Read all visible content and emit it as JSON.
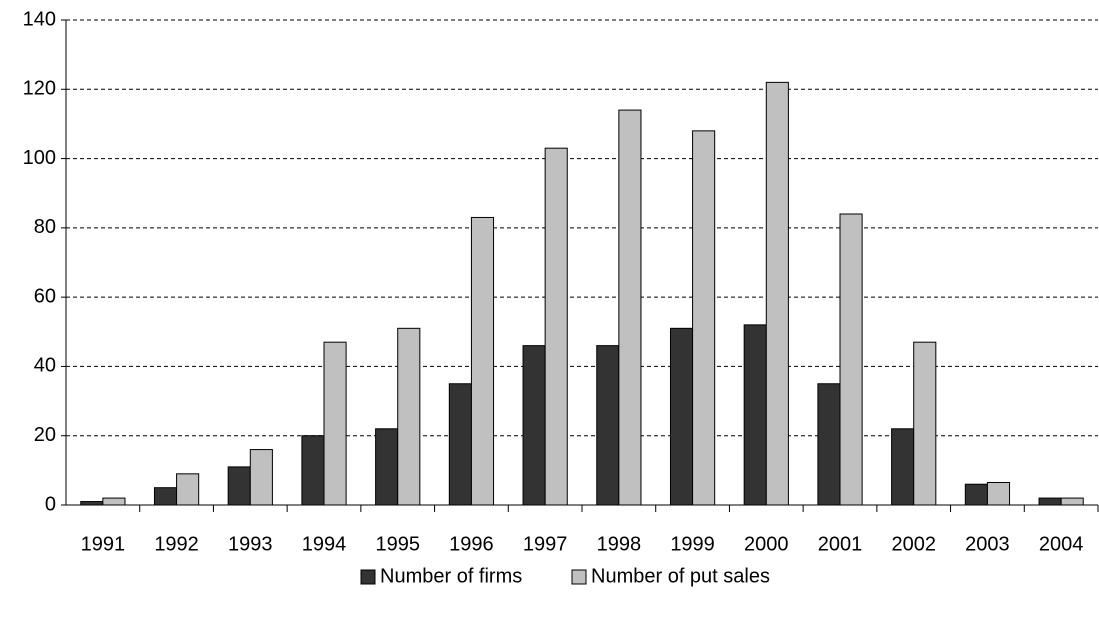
{
  "chart_data": {
    "type": "bar",
    "categories": [
      "1991",
      "1992",
      "1993",
      "1994",
      "1995",
      "1996",
      "1997",
      "1998",
      "1999",
      "2000",
      "2001",
      "2002",
      "2003",
      "2004"
    ],
    "series": [
      {
        "name": "Number of firms",
        "color": "#333333",
        "values": [
          1,
          5,
          11,
          20,
          22,
          35,
          46,
          46,
          51,
          52,
          35,
          22,
          6,
          2
        ]
      },
      {
        "name": "Number of put sales",
        "color": "#c0c0c0",
        "values": [
          2,
          9,
          16,
          47,
          51,
          83,
          103,
          114,
          108,
          122,
          84,
          47,
          6.5,
          2
        ]
      }
    ],
    "ylim": [
      0,
      140
    ],
    "yticks": [
      0,
      20,
      40,
      60,
      80,
      100,
      120,
      140
    ],
    "grid": true,
    "legend": "bottom"
  }
}
